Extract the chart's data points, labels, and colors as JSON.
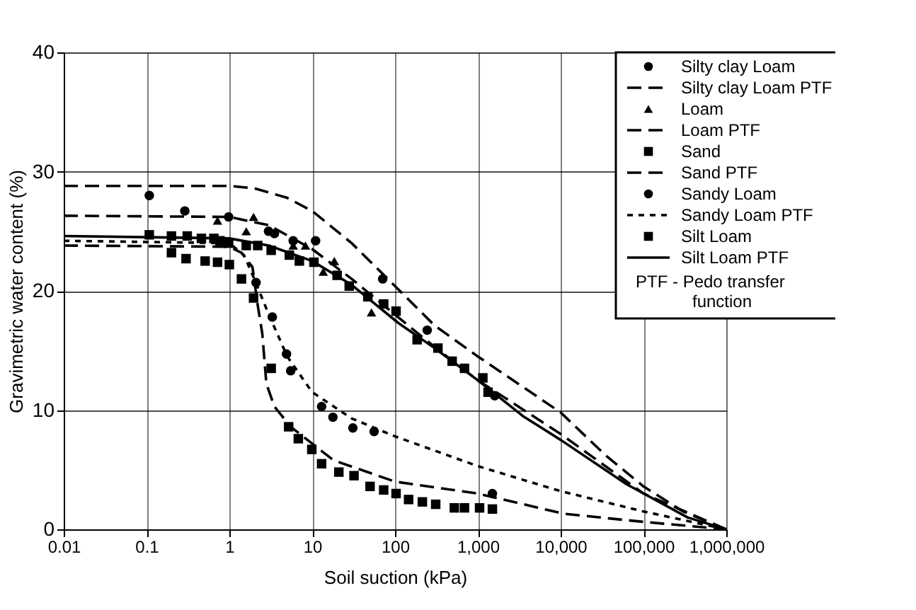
{
  "chart_data": {
    "type": "scatter",
    "xlabel": "Soil suction (kPa)",
    "ylabel": "Gravimetric water content (%)",
    "log": "x",
    "grid": true,
    "legend": "top right",
    "xlim": [
      0.01,
      1000000
    ],
    "ylim": [
      0,
      40
    ],
    "xticks": [
      0.01,
      0.1,
      1,
      10,
      100,
      {
        "value": 1000,
        "label": "1,000"
      },
      {
        "value": 10000,
        "label": "10,000"
      },
      {
        "value": 100000,
        "label": "100,000"
      },
      {
        "value": 1000000,
        "label": "1,000,000"
      }
    ],
    "yticks": [
      0,
      10,
      20,
      30,
      40
    ],
    "annotations": [
      "PTF - Pedo transfer function"
    ],
    "series": [
      {
        "name": "Silty clay Loam",
        "marker": "circle",
        "color": "#000000",
        "x": [
          0.108,
          0.29,
          0.98,
          2.97,
          3.5,
          5.9,
          11,
          71,
          245,
          1600
        ],
        "values": [
          28.0,
          26.7,
          26.2,
          25.0,
          24.8,
          24.2,
          24.2,
          21.0,
          16.7,
          11.2
        ]
      },
      {
        "name": "Silty clay Loam PTF",
        "type": "line",
        "line_style": "dashed",
        "marker": "none",
        "color": "#000000",
        "x": [
          0.01,
          1,
          2,
          5,
          10,
          30,
          100,
          300,
          1000,
          10000,
          35000,
          100000,
          300000,
          1000000
        ],
        "values": [
          28.8,
          28.8,
          28.6,
          27.8,
          26.7,
          24.0,
          20.4,
          17.1,
          14.5,
          9.8,
          6.2,
          3.6,
          1.5,
          0
        ]
      },
      {
        "name": "Loam",
        "marker": "triangle",
        "color": "#000000",
        "x": [
          0.72,
          1.96,
          1.6,
          5.9,
          8.3,
          13.6,
          18.5,
          52
        ],
        "values": [
          25.9,
          26.2,
          25.0,
          23.8,
          23.8,
          21.6,
          22.5,
          18.2
        ]
      },
      {
        "name": "Loam PTF",
        "type": "line",
        "line_style": "dashed",
        "marker": "none",
        "color": "#000000",
        "x": [
          0.01,
          1,
          3,
          10,
          30,
          100,
          300,
          1000,
          10000,
          100000,
          1000000
        ],
        "values": [
          26.3,
          26.2,
          25.5,
          23.5,
          21,
          18,
          15.3,
          12.5,
          8,
          3,
          0
        ]
      },
      {
        "name": "Sand",
        "marker": "square",
        "color": "#000000",
        "x": [
          0.2,
          0.3,
          0.51,
          0.72,
          1.0,
          1.4,
          1.96,
          3.2,
          5.2,
          6.8,
          9.9,
          13,
          21,
          32,
          50,
          73,
          103,
          146,
          214,
          310,
          520,
          690,
          1050,
          1500
        ],
        "values": [
          23.2,
          22.7,
          22.5,
          22.4,
          22.2,
          21.0,
          19.4,
          13.5,
          8.6,
          7.6,
          6.7,
          5.5,
          4.8,
          4.5,
          3.6,
          3.3,
          3.0,
          2.5,
          2.3,
          2.1,
          1.8,
          1.8,
          1.8,
          1.7
        ]
      },
      {
        "name": "Sand PTF",
        "type": "line",
        "line_style": "dashed",
        "marker": "none",
        "color": "#000000",
        "x": [
          0.01,
          1,
          1.4,
          1.9,
          2.2,
          2.5,
          2.8,
          3.5,
          5.5,
          18,
          100,
          1000,
          11000,
          110000,
          1000000
        ],
        "values": [
          23.8,
          23.7,
          23.2,
          22,
          18.8,
          16.4,
          12.2,
          10.3,
          8.6,
          5.8,
          4.0,
          3.0,
          1.3,
          0.6,
          0
        ]
      },
      {
        "name": "Sandy Loam",
        "marker": "circle",
        "color": "#000000",
        "x": [
          2.1,
          3.3,
          4.9,
          5.5,
          13,
          17.8,
          31,
          56,
          1500
        ],
        "values": [
          20.7,
          17.8,
          14.7,
          13.3,
          10.3,
          9.4,
          8.5,
          8.2,
          3.0
        ]
      },
      {
        "name": "Sandy Loam PTF",
        "type": "line",
        "line_style": "dotted",
        "marker": "none",
        "color": "#000000",
        "x": [
          0.01,
          1,
          1.5,
          2,
          3,
          5,
          10,
          30,
          100,
          1000,
          10000,
          100000,
          1000000
        ],
        "values": [
          24.2,
          24,
          23,
          21,
          18,
          14.5,
          11.5,
          9.3,
          7.8,
          5.3,
          3.2,
          1.5,
          0
        ]
      },
      {
        "name": "Silt Loam",
        "marker": "square",
        "color": "#000000",
        "x": [
          0.108,
          0.2,
          0.31,
          0.46,
          0.65,
          0.77,
          0.98,
          1.6,
          2.2,
          3.2,
          5.3,
          7.0,
          10.5,
          20,
          28,
          47,
          73,
          103,
          185,
          330,
          490,
          690,
          1150,
          1330
        ],
        "values": [
          24.7,
          24.6,
          24.6,
          24.4,
          24.4,
          24.2,
          24.0,
          23.8,
          23.8,
          23.4,
          23.0,
          22.5,
          22.4,
          21.3,
          20.4,
          19.5,
          18.9,
          18.3,
          15.9,
          15.2,
          14.1,
          13.5,
          12.7,
          11.5
        ]
      },
      {
        "name": "Silt Loam PTF",
        "type": "line",
        "line_style": "solid",
        "marker": "none",
        "color": "#000000",
        "x": [
          0.01,
          1,
          3,
          10,
          30,
          110,
          300,
          1000,
          3500,
          10000,
          62000,
          340000,
          1000000
        ],
        "values": [
          24.6,
          24.4,
          23.8,
          22.5,
          20.5,
          17.3,
          15.2,
          12.5,
          9.5,
          7.5,
          3.8,
          1.0,
          0
        ]
      }
    ]
  }
}
